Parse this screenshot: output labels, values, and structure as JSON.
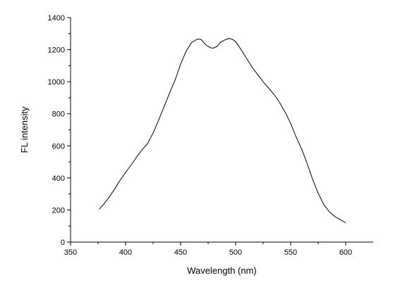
{
  "chart_data": {
    "type": "line",
    "xlabel": "Wavelength (nm)",
    "ylabel": "FL intensity",
    "xlim": [
      350,
      625
    ],
    "ylim": [
      0,
      1400
    ],
    "x_ticks": [
      350,
      400,
      450,
      500,
      550,
      600
    ],
    "y_ticks": [
      0,
      200,
      400,
      600,
      800,
      1000,
      1200,
      1400
    ],
    "x_minor_step": 25,
    "y_minor_step": 100,
    "grid": false,
    "line_color": "#000000",
    "series": [
      {
        "x": [
          376,
          380,
          385,
          390,
          395,
          400,
          405,
          410,
          415,
          420,
          425,
          430,
          435,
          440,
          445,
          450,
          455,
          460,
          465,
          468,
          470,
          472,
          475,
          478,
          480,
          483,
          486,
          490,
          494,
          497,
          500,
          505,
          510,
          515,
          520,
          525,
          530,
          535,
          540,
          545,
          550,
          555,
          560,
          565,
          570,
          575,
          580,
          585,
          590,
          595,
          600
        ],
        "y": [
          205,
          235,
          280,
          330,
          385,
          435,
          480,
          530,
          575,
          615,
          680,
          760,
          845,
          930,
          1010,
          1110,
          1190,
          1245,
          1265,
          1265,
          1255,
          1235,
          1220,
          1210,
          1210,
          1220,
          1245,
          1260,
          1270,
          1265,
          1250,
          1200,
          1145,
          1090,
          1045,
          1000,
          960,
          920,
          870,
          810,
          740,
          655,
          580,
          490,
          390,
          305,
          235,
          190,
          160,
          140,
          120
        ]
      }
    ]
  }
}
